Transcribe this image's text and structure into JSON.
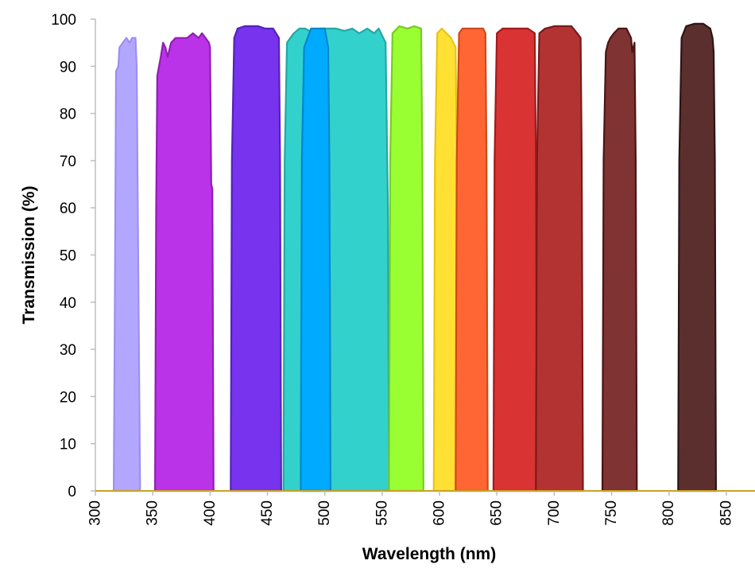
{
  "chart_data": {
    "type": "area",
    "xlabel": "Wavelength (nm)",
    "ylabel": "Transmission (%)",
    "xlim": [
      300,
      875
    ],
    "ylim": [
      0,
      100
    ],
    "xticks": [
      300,
      350,
      400,
      450,
      500,
      550,
      600,
      650,
      700,
      750,
      800,
      850
    ],
    "yticks": [
      0,
      10,
      20,
      30,
      40,
      50,
      60,
      70,
      80,
      90,
      100
    ],
    "grid": false,
    "legend": "none",
    "baseline_color": "#C9A227",
    "series": [
      {
        "fill": "#B3A6FF",
        "stroke": "#9E8FF0",
        "points": [
          [
            316,
            0
          ],
          [
            317,
            40
          ],
          [
            318,
            89
          ],
          [
            320,
            90
          ],
          [
            321,
            94
          ],
          [
            324,
            95
          ],
          [
            327,
            96
          ],
          [
            330,
            95
          ],
          [
            332,
            96
          ],
          [
            335,
            96
          ],
          [
            336,
            90
          ],
          [
            337,
            60
          ],
          [
            339,
            0
          ]
        ]
      },
      {
        "fill": "#BB33E8",
        "stroke": "#8E1FB2",
        "points": [
          [
            352,
            0
          ],
          [
            353,
            60
          ],
          [
            354,
            88
          ],
          [
            357,
            92
          ],
          [
            359,
            95
          ],
          [
            361,
            94
          ],
          [
            363,
            92
          ],
          [
            366,
            95
          ],
          [
            370,
            96
          ],
          [
            375,
            96
          ],
          [
            380,
            96
          ],
          [
            385,
            97
          ],
          [
            390,
            96
          ],
          [
            393,
            97
          ],
          [
            396,
            96
          ],
          [
            399,
            95
          ],
          [
            400,
            94
          ],
          [
            401,
            65
          ],
          [
            402,
            64
          ],
          [
            402.5,
            30
          ],
          [
            403,
            0
          ]
        ]
      },
      {
        "fill": "#7733EE",
        "stroke": "#5522BB",
        "points": [
          [
            418,
            0
          ],
          [
            419,
            70
          ],
          [
            421,
            96
          ],
          [
            424,
            98
          ],
          [
            430,
            98.5
          ],
          [
            436,
            98.5
          ],
          [
            442,
            98.5
          ],
          [
            448,
            98
          ],
          [
            455,
            98
          ],
          [
            460,
            96
          ],
          [
            461,
            70
          ],
          [
            462,
            0
          ]
        ]
      },
      {
        "fill": "#33D1CC",
        "stroke": "#22A8A3",
        "points": [
          [
            464,
            0
          ],
          [
            465,
            70
          ],
          [
            467,
            95
          ],
          [
            470,
            96
          ],
          [
            473,
            97
          ],
          [
            478,
            98
          ],
          [
            483,
            98
          ],
          [
            490,
            97
          ],
          [
            497,
            98
          ],
          [
            503,
            98
          ],
          [
            510,
            98
          ],
          [
            517,
            97.5
          ],
          [
            524,
            98
          ],
          [
            530,
            97
          ],
          [
            537,
            98
          ],
          [
            543,
            97
          ],
          [
            547,
            98
          ],
          [
            551,
            96
          ],
          [
            553,
            95
          ],
          [
            555,
            60
          ],
          [
            556,
            0
          ]
        ]
      },
      {
        "fill": "#00AAFF",
        "stroke": "#0088CC",
        "points": [
          [
            479,
            0
          ],
          [
            480,
            70
          ],
          [
            482,
            94
          ],
          [
            485,
            96
          ],
          [
            488,
            98
          ],
          [
            494,
            98
          ],
          [
            500,
            98
          ],
          [
            503,
            94
          ],
          [
            504,
            70
          ],
          [
            505,
            0
          ]
        ]
      },
      {
        "fill": "#99FF33",
        "stroke": "#77CC22",
        "points": [
          [
            556,
            0
          ],
          [
            557,
            70
          ],
          [
            559,
            97
          ],
          [
            565,
            98.5
          ],
          [
            572,
            98
          ],
          [
            578,
            98.5
          ],
          [
            584,
            98
          ],
          [
            585,
            70
          ],
          [
            586,
            0
          ]
        ]
      },
      {
        "fill": "#FFE033",
        "stroke": "#E6C41A",
        "points": [
          [
            595,
            0
          ],
          [
            596,
            70
          ],
          [
            598,
            97
          ],
          [
            602,
            98
          ],
          [
            606,
            97
          ],
          [
            610,
            96
          ],
          [
            614,
            94
          ],
          [
            615,
            70
          ],
          [
            616,
            0
          ]
        ]
      },
      {
        "fill": "#FF6633",
        "stroke": "#CC4A1A",
        "points": [
          [
            614,
            0
          ],
          [
            615,
            70
          ],
          [
            617,
            97
          ],
          [
            620,
            98
          ],
          [
            626,
            98
          ],
          [
            633,
            98
          ],
          [
            638,
            98
          ],
          [
            640,
            97
          ],
          [
            641,
            70
          ],
          [
            642,
            0
          ]
        ]
      },
      {
        "fill": "#D93333",
        "stroke": "#A31A1A",
        "points": [
          [
            647,
            0
          ],
          [
            648,
            70
          ],
          [
            650,
            97
          ],
          [
            655,
            98
          ],
          [
            663,
            98
          ],
          [
            670,
            98
          ],
          [
            677,
            98
          ],
          [
            683,
            97
          ],
          [
            684,
            70
          ],
          [
            685,
            0
          ]
        ]
      },
      {
        "fill": "#B33333",
        "stroke": "#7A1A1A",
        "points": [
          [
            684,
            0
          ],
          [
            685,
            70
          ],
          [
            687,
            97
          ],
          [
            692,
            98
          ],
          [
            700,
            98.5
          ],
          [
            708,
            98.5
          ],
          [
            715,
            98.5
          ],
          [
            720,
            97
          ],
          [
            723,
            96
          ],
          [
            724,
            70
          ],
          [
            725,
            0
          ]
        ]
      },
      {
        "fill": "#7F3333",
        "stroke": "#4A1515",
        "points": [
          [
            742,
            0
          ],
          [
            743,
            70
          ],
          [
            745,
            93
          ],
          [
            747,
            95
          ],
          [
            749,
            96
          ],
          [
            752,
            97
          ],
          [
            756,
            98
          ],
          [
            763,
            98
          ],
          [
            767,
            96
          ],
          [
            768,
            93
          ],
          [
            770,
            95
          ],
          [
            771,
            70
          ],
          [
            772,
            0
          ]
        ]
      },
      {
        "fill": "#5C2F2F",
        "stroke": "#2E1414",
        "points": [
          [
            808,
            0
          ],
          [
            809,
            70
          ],
          [
            811,
            96
          ],
          [
            815,
            98.5
          ],
          [
            822,
            99
          ],
          [
            830,
            99
          ],
          [
            836,
            98
          ],
          [
            838,
            96
          ],
          [
            839,
            93
          ],
          [
            840,
            70
          ],
          [
            841,
            0
          ]
        ]
      }
    ]
  }
}
